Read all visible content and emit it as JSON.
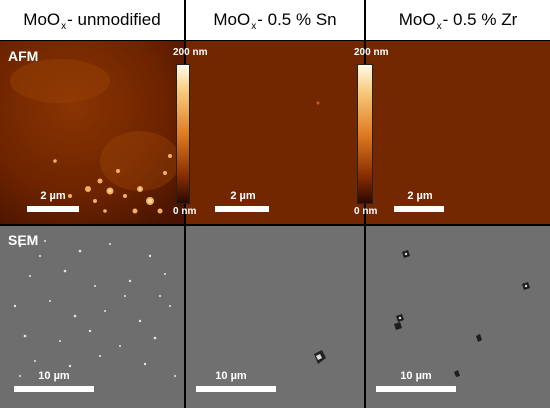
{
  "columns": [
    {
      "prefix": "MoO",
      "sub": "x",
      "suffix": " - unmodified"
    },
    {
      "prefix": "MoO",
      "sub": "x",
      "suffix": " - 0.5 % Sn"
    },
    {
      "prefix": "MoO",
      "sub": "x",
      "suffix": " - 0.5 % Zr"
    }
  ],
  "rows": {
    "afm_label": "AFM",
    "sem_label": "SEM"
  },
  "afm_scale_label": "2 µm",
  "sem_scale_label": "10 µm",
  "colorbar": {
    "max_label": "200 nm",
    "min_label": "0 nm"
  },
  "colors": {
    "afm_base": "#7a2a00",
    "sem_base": "#6f6f6f",
    "colorbar_top": "#fffbe8",
    "colorbar_bottom": "#2a0800"
  }
}
